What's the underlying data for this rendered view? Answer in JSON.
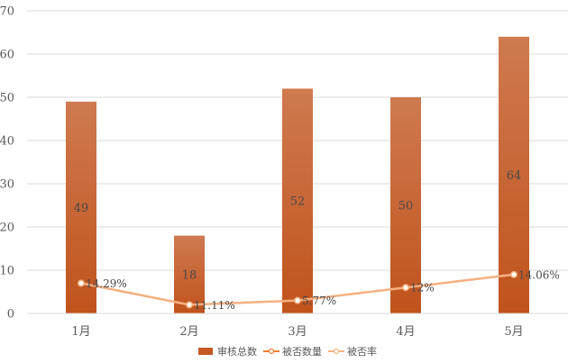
{
  "chart_data": {
    "type": "bar",
    "categories": [
      "1月",
      "2月",
      "3月",
      "4月",
      "5月"
    ],
    "series": [
      {
        "name": "审核总数",
        "type": "bar",
        "values": [
          49,
          18,
          52,
          50,
          64
        ],
        "color": "#c55a24"
      },
      {
        "name": "被否数量",
        "type": "line",
        "values": [
          7,
          2,
          3,
          6,
          9
        ],
        "color": "#ed7d31"
      },
      {
        "name": "被否率",
        "type": "line",
        "values": [
          14.29,
          11.11,
          5.77,
          12,
          14.06
        ],
        "labels": [
          "14.29%",
          "11.11%",
          "5.77%",
          "12%",
          "14.06%"
        ],
        "color": "#f4b183"
      }
    ],
    "ylim": [
      0,
      70
    ],
    "yticks": [
      0,
      10,
      20,
      30,
      40,
      50,
      60,
      70
    ],
    "grid": true,
    "legend": "bottom",
    "title": "",
    "xlabel": "",
    "ylabel": ""
  }
}
